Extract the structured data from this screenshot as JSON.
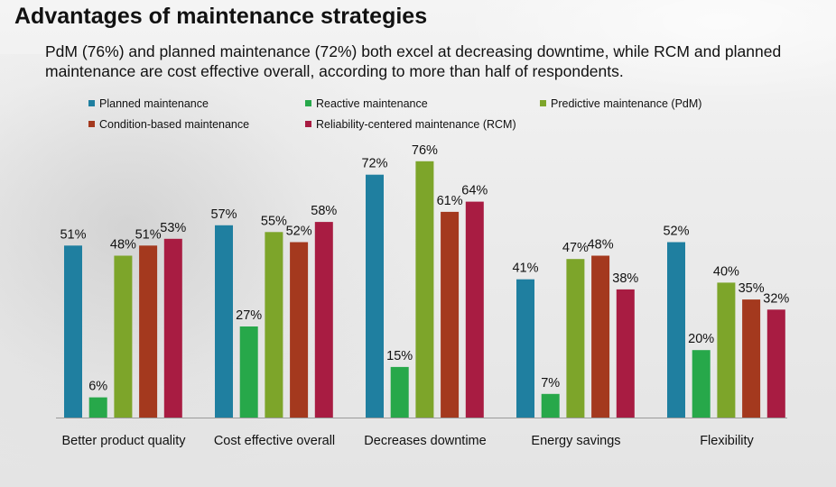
{
  "title": "Advantages of maintenance strategies",
  "subtitle": "PdM (76%) and planned maintenance (72%) both excel at decreasing downtime, while RCM and planned maintenance are cost effective overall, according to more than half of respondents.",
  "chart_data": {
    "type": "bar",
    "title": "",
    "xlabel": "",
    "ylabel": "",
    "ylim": [
      0,
      85
    ],
    "grid": false,
    "legend_position": "top",
    "value_suffix": "%",
    "categories": [
      "Better product quality",
      "Cost effective overall",
      "Decreases downtime",
      "Energy savings",
      "Flexibility"
    ],
    "series": [
      {
        "name": "Planned maintenance",
        "color": "#1f7fa0",
        "values": [
          51,
          57,
          72,
          41,
          52
        ]
      },
      {
        "name": "Reactive maintenance",
        "color": "#27a84a",
        "values": [
          6,
          27,
          15,
          7,
          20
        ]
      },
      {
        "name": "Predictive maintenance (PdM)",
        "color": "#7da52a",
        "values": [
          48,
          55,
          76,
          47,
          40
        ]
      },
      {
        "name": "Condition-based maintenance",
        "color": "#a4391e",
        "values": [
          51,
          52,
          61,
          48,
          35
        ]
      },
      {
        "name": "Reliability-centered maintenance (RCM)",
        "color": "#a81c42",
        "values": [
          53,
          58,
          64,
          38,
          32
        ]
      }
    ]
  }
}
